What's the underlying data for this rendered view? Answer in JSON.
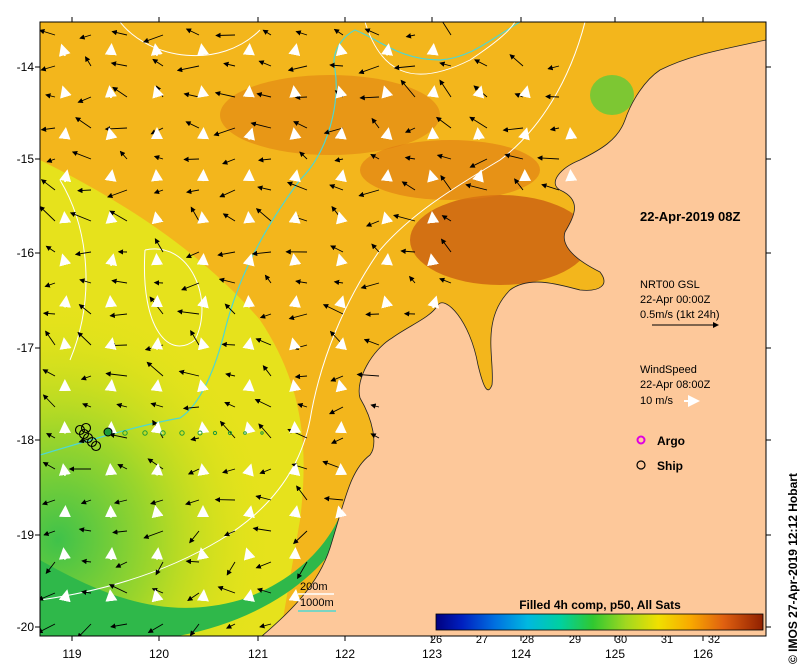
{
  "map": {
    "date_label": "22-Apr-2019 08Z",
    "credit": "© IMOS 27-Apr-2019 12:12 Hobart",
    "x_ticks": [
      "119",
      "120",
      "121",
      "122",
      "123",
      "124",
      "125",
      "126"
    ],
    "y_ticks": [
      "-14",
      "-15",
      "-16",
      "-17",
      "-18",
      "-19",
      "-20"
    ],
    "colors": {
      "land": "#fdc89a",
      "contour_200m": "#ffffff",
      "contour_1000m": "#4fd7d0",
      "argo": "#e000e0",
      "current_arrow": "#000000",
      "wind_arrow": "#ffffff"
    },
    "icons": {
      "argo": "argo-float-marker-icon",
      "ship": "ship-marker-icon"
    }
  },
  "legend": {
    "current": {
      "line1": "NRT00 GSL",
      "line2": "22-Apr 00:00Z",
      "line3": "0.5m/s (1kt 24h)"
    },
    "wind": {
      "line1": "WindSpeed",
      "line2": "22-Apr 08:00Z",
      "line3": "10 m/s"
    },
    "argo_label": "Argo",
    "ship_label": "Ship"
  },
  "contours": {
    "label_200m": "200m",
    "label_1000m": "1000m"
  },
  "colorbar": {
    "title": "Filled 4h comp, p50, All Sats",
    "ticks": [
      "26",
      "27",
      "28",
      "29",
      "30",
      "31",
      "32"
    ]
  }
}
